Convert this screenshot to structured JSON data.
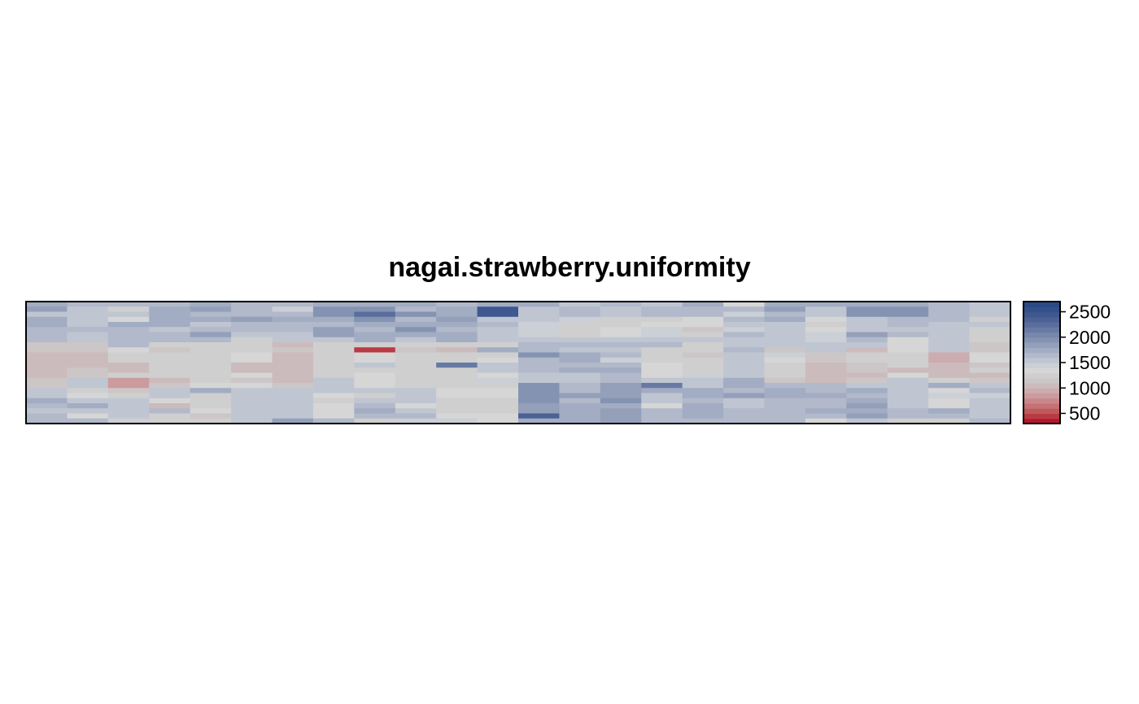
{
  "chart_data": {
    "type": "heatmap",
    "title": "nagai.strawberry.uniformity",
    "xlabel": "",
    "ylabel": "",
    "n_cols": 24,
    "n_rows": 24,
    "value_range": [
      300,
      2700
    ],
    "legend": {
      "position": "right",
      "ticks": [
        500,
        1000,
        1500,
        2000,
        2500
      ],
      "tick_labels": [
        "500",
        "1000",
        "1500",
        "2000",
        "2500"
      ],
      "breaks": [
        300,
        400,
        500,
        600,
        700,
        800,
        900,
        1000,
        1100,
        1200,
        1300,
        1400,
        1500,
        1600,
        1700,
        1800,
        1900,
        2000,
        2100,
        2200,
        2300,
        2400,
        2500,
        2600,
        2700
      ]
    },
    "colors": [
      "#B2182B",
      "#B93A43",
      "#C0595B",
      "#C67173",
      "#C9878B",
      "#CB9B9E",
      "#CCACAE",
      "#CCBBBC",
      "#CCC6C7",
      "#CFCFCF",
      "#D6D6D6",
      "#CBCFD6",
      "#BFC6D2",
      "#B1B9CA",
      "#A2ACC2",
      "#949FBA",
      "#8593B3",
      "#7787AB",
      "#687AA4",
      "#5A6E9C",
      "#4C6295",
      "#3F588F",
      "#33508A",
      "#2A4A86"
    ],
    "grid": [
      [
        1700,
        1600,
        1650,
        1650,
        1700,
        1650,
        1650,
        1700,
        1700,
        1700,
        1650,
        1700,
        1750,
        1500,
        1600,
        1500,
        1700,
        1300,
        1750,
        1750,
        1700,
        1750,
        1650,
        1500
      ],
      [
        1850,
        1550,
        1250,
        1750,
        1850,
        1650,
        1450,
        1950,
        1950,
        1650,
        1750,
        2400,
        1500,
        1650,
        1550,
        1650,
        1600,
        1650,
        1800,
        1500,
        1950,
        1900,
        1600,
        1500
      ],
      [
        1550,
        1550,
        1550,
        1750,
        1650,
        1650,
        1650,
        1950,
        2250,
        1900,
        1750,
        2400,
        1500,
        1650,
        1550,
        1650,
        1600,
        1450,
        1650,
        1500,
        1950,
        1900,
        1600,
        1500
      ],
      [
        1700,
        1550,
        1350,
        1750,
        1750,
        1800,
        1750,
        1750,
        1950,
        1650,
        1850,
        1550,
        1500,
        1450,
        1250,
        1250,
        1350,
        1600,
        1700,
        1350,
        1550,
        1650,
        1600,
        1250
      ],
      [
        1700,
        1550,
        1700,
        1750,
        1500,
        1650,
        1650,
        1650,
        1700,
        1700,
        1700,
        1650,
        1450,
        1250,
        1200,
        1300,
        1350,
        1550,
        1550,
        1250,
        1550,
        1650,
        1500,
        1500
      ],
      [
        1600,
        1600,
        1600,
        1550,
        1600,
        1650,
        1600,
        1800,
        1650,
        1900,
        1600,
        1550,
        1450,
        1200,
        1300,
        1450,
        1150,
        1450,
        1550,
        1300,
        1550,
        1500,
        1500,
        1250
      ],
      [
        1600,
        1500,
        1650,
        1600,
        1850,
        1500,
        1500,
        1800,
        1700,
        1700,
        1700,
        1500,
        1450,
        1200,
        1300,
        1450,
        1250,
        1600,
        1550,
        1450,
        1800,
        1600,
        1500,
        1250
      ],
      [
        1600,
        1500,
        1650,
        1600,
        1600,
        1250,
        1550,
        1550,
        1700,
        1550,
        1700,
        1550,
        1500,
        1500,
        1550,
        1500,
        1500,
        1550,
        1500,
        1450,
        1650,
        1350,
        1500,
        1250
      ],
      [
        1100,
        1100,
        1600,
        1250,
        1250,
        1250,
        1050,
        1200,
        1250,
        1200,
        1200,
        1200,
        1650,
        1600,
        1650,
        1650,
        1200,
        1550,
        1550,
        1550,
        1550,
        1350,
        1500,
        1100
      ],
      [
        1100,
        1100,
        1350,
        1100,
        1250,
        1250,
        1150,
        1200,
        450,
        1150,
        1050,
        1750,
        1650,
        1550,
        1550,
        1250,
        1200,
        1650,
        1100,
        1550,
        1050,
        1350,
        1500,
        1100
      ],
      [
        1050,
        1050,
        1250,
        1250,
        1250,
        1350,
        1050,
        1200,
        1300,
        1250,
        1200,
        1250,
        1950,
        1750,
        1650,
        1250,
        1150,
        1500,
        1400,
        1150,
        1250,
        1200,
        950,
        1300
      ],
      [
        1050,
        1050,
        1250,
        1250,
        1250,
        1350,
        1050,
        1200,
        1300,
        1250,
        1250,
        1300,
        1650,
        1700,
        1450,
        1250,
        1250,
        1500,
        1300,
        1150,
        1250,
        1200,
        950,
        1300
      ],
      [
        1050,
        1050,
        1050,
        1200,
        1250,
        1050,
        1000,
        1200,
        1550,
        1200,
        2150,
        1500,
        1650,
        1650,
        1650,
        1300,
        1200,
        1500,
        1250,
        1050,
        1100,
        1200,
        1050,
        1150
      ],
      [
        1050,
        1100,
        1050,
        1250,
        1250,
        1050,
        1050,
        1200,
        1250,
        1200,
        1250,
        1500,
        1650,
        1700,
        1700,
        1300,
        1250,
        1500,
        1250,
        1050,
        1100,
        1050,
        1050,
        1200
      ],
      [
        1050,
        1100,
        1200,
        1250,
        1250,
        1350,
        1050,
        1200,
        1350,
        1200,
        1250,
        1350,
        1550,
        1550,
        1650,
        1350,
        1400,
        1500,
        1250,
        1050,
        1050,
        1300,
        1050,
        1050
      ],
      [
        1100,
        1500,
        850,
        1050,
        1250,
        1150,
        1050,
        1550,
        1350,
        1250,
        1250,
        1400,
        1550,
        1550,
        1650,
        1500,
        1550,
        1700,
        1150,
        1050,
        1100,
        1550,
        1250,
        1150
      ],
      [
        1100,
        1500,
        850,
        1100,
        1300,
        1300,
        1150,
        1550,
        1350,
        1250,
        1250,
        1250,
        1950,
        1650,
        1800,
        2150,
        1550,
        1700,
        1600,
        1600,
        1500,
        1550,
        1750,
        1500
      ],
      [
        1550,
        1250,
        1100,
        1500,
        1700,
        1500,
        1500,
        1500,
        1500,
        1500,
        1300,
        1300,
        1950,
        1650,
        1800,
        1750,
        1700,
        1600,
        1700,
        1650,
        1750,
        1500,
        1300,
        1600
      ],
      [
        1500,
        1350,
        1250,
        1550,
        1250,
        1500,
        1500,
        1300,
        1200,
        1550,
        1300,
        1300,
        1950,
        1850,
        1850,
        1500,
        1700,
        1800,
        1700,
        1700,
        1600,
        1550,
        1400,
        1400
      ],
      [
        1750,
        1550,
        1500,
        1350,
        1250,
        1500,
        1500,
        1250,
        1550,
        1500,
        1250,
        1250,
        1950,
        1650,
        1950,
        1550,
        1600,
        1550,
        1650,
        1650,
        1750,
        1550,
        1350,
        1500
      ],
      [
        1650,
        1750,
        1500,
        1050,
        1250,
        1500,
        1500,
        1300,
        1600,
        1350,
        1250,
        1250,
        1850,
        1750,
        1750,
        1350,
        1700,
        1500,
        1650,
        1650,
        1850,
        1550,
        1300,
        1550
      ],
      [
        1550,
        1550,
        1500,
        1600,
        1300,
        1500,
        1500,
        1300,
        1700,
        1550,
        1250,
        1250,
        1850,
        1750,
        1850,
        1650,
        1700,
        1650,
        1650,
        1750,
        1700,
        1600,
        1700,
        1550
      ],
      [
        1650,
        1300,
        1550,
        1250,
        1150,
        1500,
        1500,
        1300,
        1650,
        1650,
        1300,
        1300,
        2350,
        1750,
        1850,
        1650,
        1700,
        1650,
        1650,
        1650,
        1800,
        1600,
        1650,
        1550
      ],
      [
        1650,
        1650,
        1250,
        1250,
        1250,
        1500,
        1800,
        1650,
        1250,
        1450,
        1450,
        1300,
        1750,
        1750,
        1850,
        1650,
        1650,
        1650,
        1650,
        1300,
        1500,
        1250,
        1250,
        1600
      ]
    ]
  }
}
